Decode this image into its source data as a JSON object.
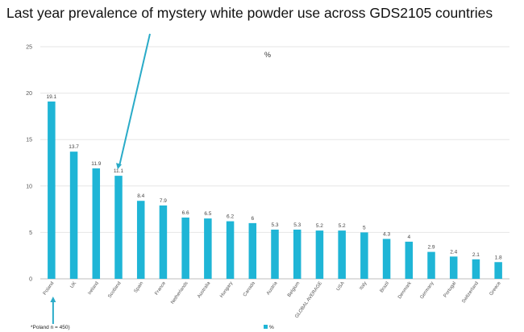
{
  "chart_data": {
    "type": "bar",
    "title": "Last year prevalence of mystery white powder use across GDS2105 countries",
    "center_label": "%",
    "categories": [
      "Poland",
      "UK",
      "Ireland",
      "Scotland",
      "Spain",
      "France",
      "Netherlands",
      "Australia",
      "Hungary",
      "Canada",
      "Austria",
      "Belgium",
      "GLOBAL AVERAGE",
      "USA",
      "Italy",
      "Brazil",
      "Denmark",
      "Germany",
      "Portugal",
      "Switzerland",
      "Greece"
    ],
    "series": [
      {
        "name": "%",
        "values": [
          19.1,
          13.7,
          11.9,
          11.1,
          8.4,
          7.9,
          6.6,
          6.5,
          6.2,
          6,
          5.3,
          5.3,
          5.2,
          5.2,
          5,
          4.3,
          4,
          2.9,
          2.4,
          2.1,
          1.8
        ]
      }
    ],
    "data_labels": [
      "19.1",
      "13.7",
      "11.9",
      "11.1",
      "8.4",
      "7.9",
      "6.6",
      "6.5",
      "6.2",
      "6",
      "5.3",
      "5.3",
      "5.2",
      "5.2",
      "5",
      "4.3",
      "4",
      "2.9",
      "2.4",
      "2.1",
      "1.8"
    ],
    "yticks": [
      0,
      5,
      10,
      15,
      20,
      25
    ],
    "ylim": [
      0,
      25
    ],
    "grid": true,
    "legend": {
      "position": "bottom",
      "entries": [
        "%"
      ]
    },
    "footnote": "*Poland n = 450)",
    "bar_color": "#1FB5D6",
    "annotation_color": "#2AABC8"
  }
}
